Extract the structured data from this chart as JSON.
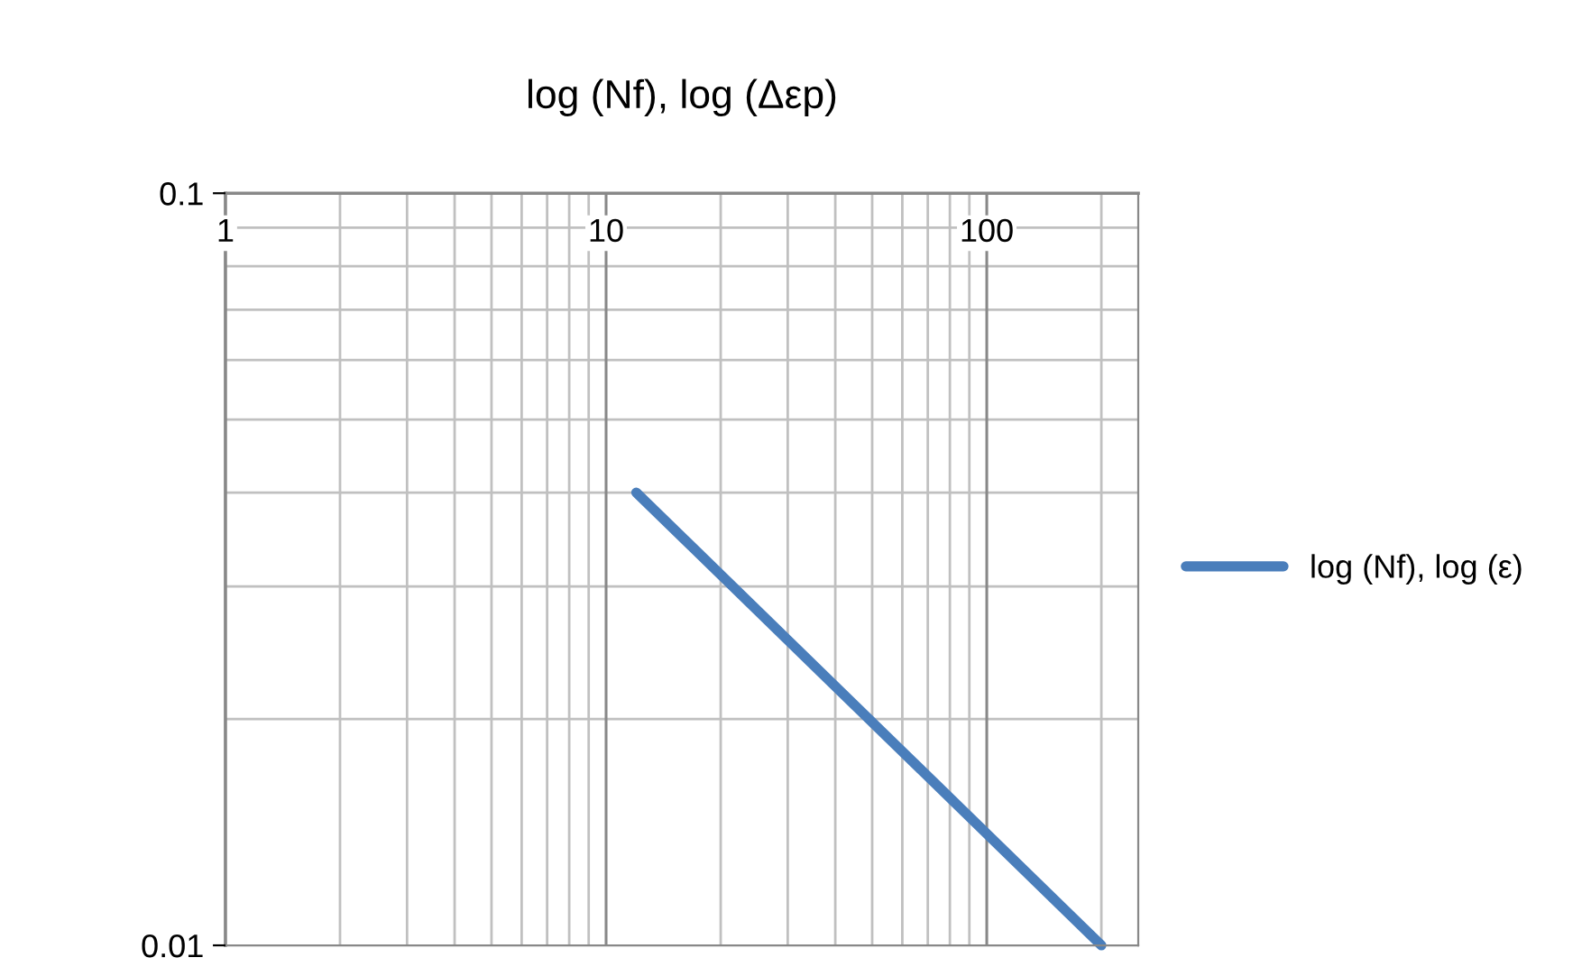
{
  "chart_data": {
    "type": "line",
    "title": "log (Nf), log (Δεp)",
    "series": [
      {
        "name": "log (Nf), log (ε)",
        "color": "#4a7ebb",
        "x": [
          12,
          200
        ],
        "values": [
          0.04,
          0.01
        ]
      }
    ],
    "log": "xy",
    "xlim": [
      1,
      250
    ],
    "ylim": [
      0.01,
      0.1
    ],
    "xticks": [
      1,
      10,
      100
    ],
    "yticks": [
      0.01,
      0.1
    ],
    "grid": true,
    "legend": "right",
    "marker": "none",
    "line_style": "solid"
  }
}
